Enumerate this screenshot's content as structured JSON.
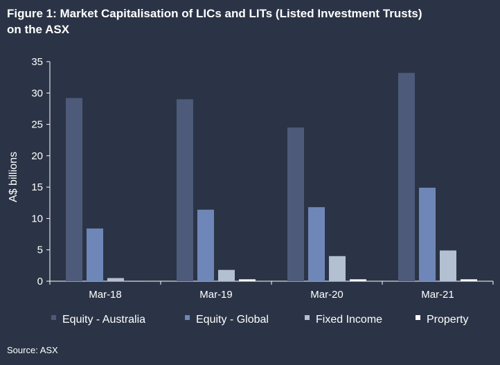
{
  "title_line1": "Figure 1: Market Capitalisation of LICs and LITs (Listed Investment Trusts)",
  "title_line2": "on the ASX",
  "source": "Source: ASX",
  "chart_data": {
    "type": "bar",
    "title": "Figure 1: Market Capitalisation of LICs and LITs (Listed Investment Trusts) on the ASX",
    "xlabel": "",
    "ylabel": "A$ billions",
    "ylim": [
      0,
      35
    ],
    "yticks": [
      0,
      5,
      10,
      15,
      20,
      25,
      30,
      35
    ],
    "grid": false,
    "legend_position": "bottom",
    "categories": [
      "Mar-18",
      "Mar-19",
      "Mar-20",
      "Mar-21"
    ],
    "series": [
      {
        "name": "Equity - Australia",
        "color": "#4d5a7a",
        "values": [
          29.2,
          29.0,
          24.5,
          33.2
        ]
      },
      {
        "name": "Equity - Global",
        "color": "#6f87b8",
        "values": [
          8.4,
          11.4,
          11.8,
          14.9
        ]
      },
      {
        "name": "Fixed Income",
        "color": "#b3c0d2",
        "values": [
          0.5,
          1.8,
          4.0,
          4.9
        ]
      },
      {
        "name": "Property",
        "color": "#ffffff",
        "values": [
          0.05,
          0.3,
          0.3,
          0.3
        ]
      }
    ]
  }
}
